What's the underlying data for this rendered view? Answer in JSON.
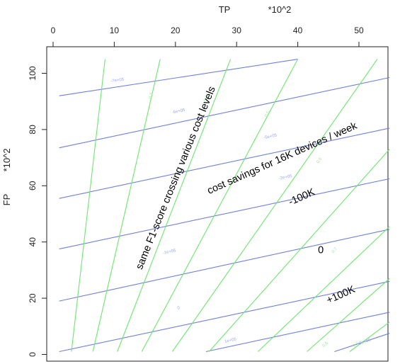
{
  "chart_data": {
    "type": "line",
    "xlabel": "TP",
    "xlabel_scale": "*10^2",
    "ylabel": "FP",
    "ylabel_scale": "*10^2",
    "x_axis_position": "top",
    "xlim": [
      0,
      55
    ],
    "ylim": [
      0,
      105
    ],
    "x_ticks": [
      0,
      10,
      20,
      30,
      40,
      50
    ],
    "y_ticks": [
      0,
      20,
      40,
      60,
      80,
      100
    ],
    "grid": false,
    "legend": "none",
    "colors": {
      "cost_lines": "#6f7fe0",
      "f1_lines": "#6ee56e",
      "cost_labels": "#9aa6ee",
      "f1_labels": "#9fe89f",
      "frame": "#222222"
    },
    "series": [
      {
        "group": "cost",
        "points": [
          [
            1,
            92
          ],
          [
            40,
            105
          ]
        ],
        "label": "-7e+05",
        "label_at": [
          10.5,
          97.5
        ]
      },
      {
        "group": "cost",
        "points": [
          [
            1,
            73.5
          ],
          [
            55,
            98.5
          ]
        ],
        "label": "-6e+05",
        "label_at": [
          20.5,
          86.5
        ]
      },
      {
        "group": "cost",
        "points": [
          [
            1,
            55.5
          ],
          [
            55,
            80.5
          ]
        ],
        "label": "-5e+05",
        "label_at": [
          35.5,
          77.5
        ]
      },
      {
        "group": "cost",
        "points": [
          [
            1,
            37.5
          ],
          [
            55,
            62.5
          ]
        ],
        "label": "-2e+05",
        "label_at": [
          38,
          63
        ]
      },
      {
        "group": "cost",
        "points": [
          [
            1,
            19
          ],
          [
            55,
            44.5
          ]
        ],
        "label": "-1e+05",
        "label_at": [
          19,
          36.5
        ]
      },
      {
        "group": "cost",
        "points": [
          [
            1,
            1
          ],
          [
            55,
            26
          ]
        ],
        "label": "0",
        "label_at": [
          20.5,
          16.5
        ]
      },
      {
        "group": "cost",
        "points": [
          [
            25,
            1
          ],
          [
            55,
            15
          ]
        ],
        "label": "1e+05",
        "label_at": [
          29,
          5
        ]
      },
      {
        "group": "cost",
        "points": [
          [
            46,
            1
          ],
          [
            55,
            7.5
          ]
        ],
        "label": "2e+05",
        "label_at": [
          51,
          4.5
        ]
      },
      {
        "group": "f1",
        "points": [
          [
            3,
            1
          ],
          [
            8.5,
            105
          ]
        ],
        "label": "",
        "label_at": null
      },
      {
        "group": "f1",
        "points": [
          [
            6.5,
            1
          ],
          [
            17.5,
            105
          ]
        ],
        "label": "0.3",
        "label_at": [
          16,
          92
        ]
      },
      {
        "group": "f1",
        "points": [
          [
            10.5,
            1
          ],
          [
            29,
            105
          ]
        ],
        "label": "0.4",
        "label_at": [
          25,
          91
        ]
      },
      {
        "group": "f1",
        "points": [
          [
            14.5,
            1
          ],
          [
            40,
            105
          ]
        ],
        "label": "0.5",
        "label_at": [
          35,
          85.5
        ]
      },
      {
        "group": "f1",
        "points": [
          [
            19.5,
            1
          ],
          [
            53,
            105
          ]
        ],
        "label": "0.6",
        "label_at": [
          43.5,
          69
        ]
      },
      {
        "group": "f1",
        "points": [
          [
            25.5,
            1
          ],
          [
            55,
            73
          ]
        ],
        "label": "0.7",
        "label_at": [
          46,
          37
        ]
      },
      {
        "group": "f1",
        "points": [
          [
            33.5,
            1
          ],
          [
            55,
            45.5
          ]
        ],
        "label": "0.8",
        "label_at": [
          44.5,
          3.5
        ]
      },
      {
        "group": "f1",
        "points": [
          [
            41.5,
            1
          ],
          [
            55,
            27
          ]
        ],
        "label": "",
        "label_at": null
      },
      {
        "group": "f1",
        "points": [
          [
            48.5,
            1
          ],
          [
            55,
            11.5
          ]
        ],
        "label": "0.9",
        "label_at": [
          49.5,
          3.5
        ]
      }
    ],
    "annotations": [
      {
        "text": "same F1-score crossing various cost levels",
        "at": [
          14.5,
          30
        ],
        "angle": -68
      },
      {
        "text": "cost savings for 16K devices / week",
        "at": [
          25.5,
          57
        ],
        "angle": -24
      },
      {
        "text": "-100K",
        "at": [
          38.8,
          53
        ],
        "angle": -24
      },
      {
        "text": "0",
        "at": [
          43.3,
          36
        ],
        "angle": 0
      },
      {
        "text": "+100K",
        "at": [
          45,
          18
        ],
        "angle": -24
      }
    ]
  }
}
